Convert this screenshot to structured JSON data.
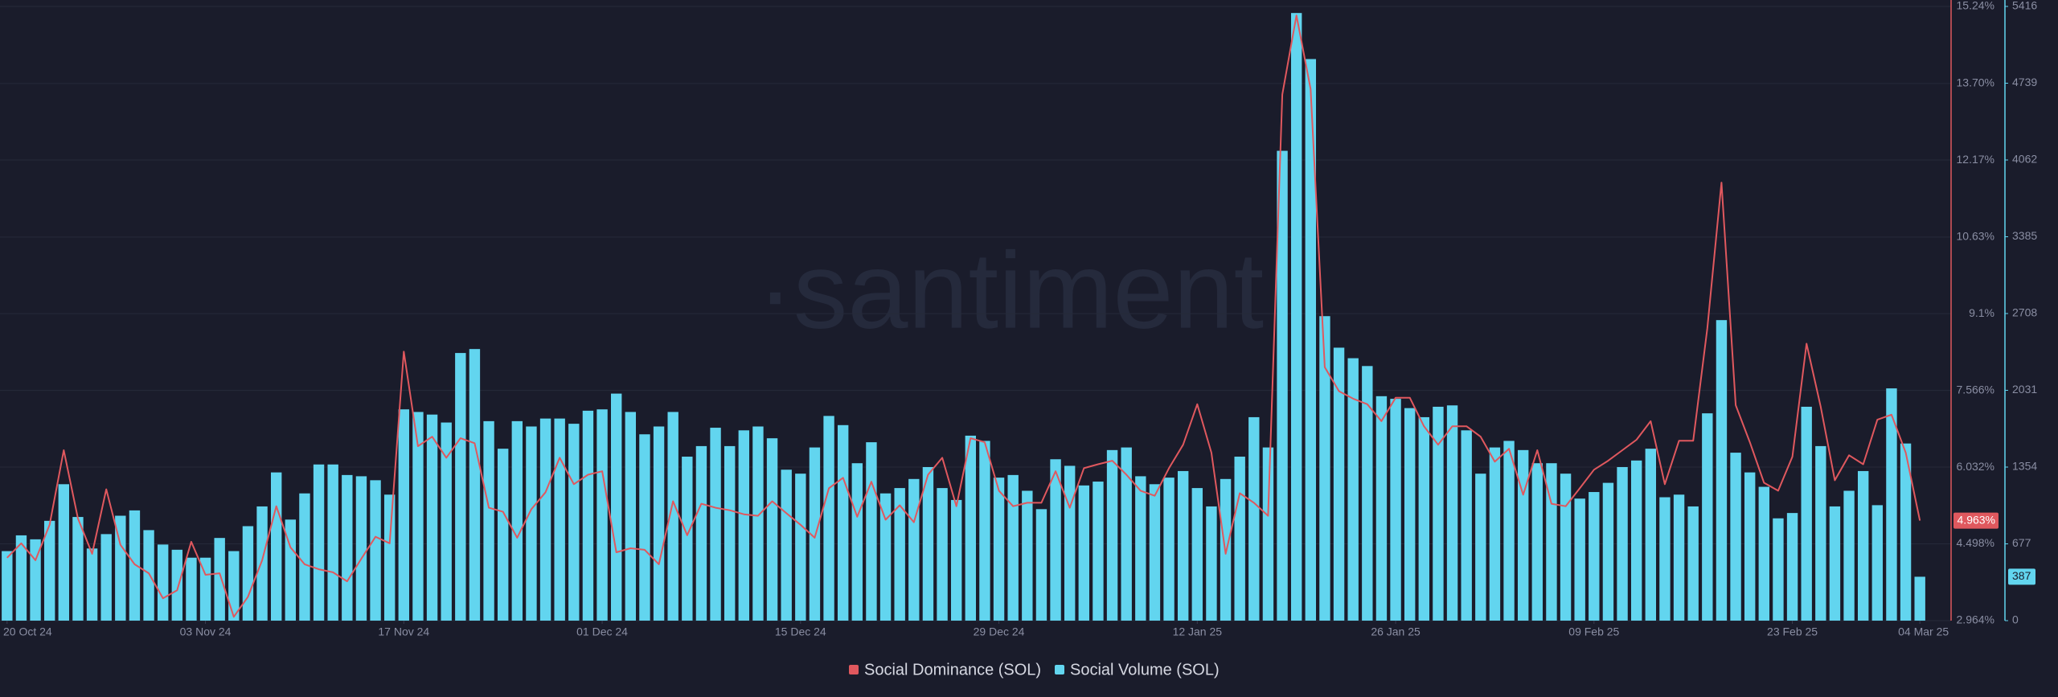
{
  "chart_data": {
    "type": "bar-line",
    "watermark": "·santiment",
    "x": [
      "2024-10-20",
      "2024-10-21",
      "2024-10-22",
      "2024-10-23",
      "2024-10-24",
      "2024-10-25",
      "2024-10-26",
      "2024-10-27",
      "2024-10-28",
      "2024-10-29",
      "2024-10-30",
      "2024-10-31",
      "2024-11-01",
      "2024-11-02",
      "2024-11-03",
      "2024-11-04",
      "2024-11-05",
      "2024-11-06",
      "2024-11-07",
      "2024-11-08",
      "2024-11-09",
      "2024-11-10",
      "2024-11-11",
      "2024-11-12",
      "2024-11-13",
      "2024-11-14",
      "2024-11-15",
      "2024-11-16",
      "2024-11-17",
      "2024-11-18",
      "2024-11-19",
      "2024-11-20",
      "2024-11-21",
      "2024-11-22",
      "2024-11-23",
      "2024-11-24",
      "2024-11-25",
      "2024-11-26",
      "2024-11-27",
      "2024-11-28",
      "2024-11-29",
      "2024-11-30",
      "2024-12-01",
      "2024-12-02",
      "2024-12-03",
      "2024-12-04",
      "2024-12-05",
      "2024-12-06",
      "2024-12-07",
      "2024-12-08",
      "2024-12-09",
      "2024-12-10",
      "2024-12-11",
      "2024-12-12",
      "2024-12-13",
      "2024-12-14",
      "2024-12-15",
      "2024-12-16",
      "2024-12-17",
      "2024-12-18",
      "2024-12-19",
      "2024-12-20",
      "2024-12-21",
      "2024-12-22",
      "2024-12-23",
      "2024-12-24",
      "2024-12-25",
      "2024-12-26",
      "2024-12-27",
      "2024-12-28",
      "2024-12-29",
      "2024-12-30",
      "2024-12-31",
      "2025-01-01",
      "2025-01-02",
      "2025-01-03",
      "2025-01-04",
      "2025-01-05",
      "2025-01-06",
      "2025-01-07",
      "2025-01-08",
      "2025-01-09",
      "2025-01-10",
      "2025-01-11",
      "2025-01-12",
      "2025-01-13",
      "2025-01-14",
      "2025-01-15",
      "2025-01-16",
      "2025-01-17",
      "2025-01-18",
      "2025-01-19",
      "2025-01-20",
      "2025-01-21",
      "2025-01-22",
      "2025-01-23",
      "2025-01-24",
      "2025-01-25",
      "2025-01-26",
      "2025-01-27",
      "2025-01-28",
      "2025-01-29",
      "2025-01-30",
      "2025-01-31",
      "2025-02-01",
      "2025-02-02",
      "2025-02-03",
      "2025-02-04",
      "2025-02-05",
      "2025-02-06",
      "2025-02-07",
      "2025-02-08",
      "2025-02-09",
      "2025-02-10",
      "2025-02-11",
      "2025-02-12",
      "2025-02-13",
      "2025-02-14",
      "2025-02-15",
      "2025-02-16",
      "2025-02-17",
      "2025-02-18",
      "2025-02-19",
      "2025-02-20",
      "2025-02-21",
      "2025-02-22",
      "2025-02-23",
      "2025-02-24",
      "2025-02-25",
      "2025-02-26",
      "2025-02-27",
      "2025-02-28",
      "2025-03-01",
      "2025-03-02",
      "2025-03-03",
      "2025-03-04"
    ],
    "xticks": [
      {
        "value": "2024-10-20",
        "label": "20 Oct 24"
      },
      {
        "value": "2024-11-03",
        "label": "03 Nov 24"
      },
      {
        "value": "2024-11-17",
        "label": "17 Nov 24"
      },
      {
        "value": "2024-12-01",
        "label": "01 Dec 24"
      },
      {
        "value": "2024-12-15",
        "label": "15 Dec 24"
      },
      {
        "value": "2024-12-29",
        "label": "29 Dec 24"
      },
      {
        "value": "2025-01-12",
        "label": "12 Jan 25"
      },
      {
        "value": "2025-01-26",
        "label": "26 Jan 25"
      },
      {
        "value": "2025-02-09",
        "label": "09 Feb 25"
      },
      {
        "value": "2025-02-23",
        "label": "23 Feb 25"
      },
      {
        "value": "2025-03-04",
        "label": "04 Mar 25"
      }
    ],
    "ylim": [
      2.964,
      15.24
    ],
    "yticks": [
      {
        "value": 2.964,
        "label": "2.964%"
      },
      {
        "value": 4.498,
        "label": "4.498%"
      },
      {
        "value": 6.032,
        "label": "6.032%"
      },
      {
        "value": 7.566,
        "label": "7.566%"
      },
      {
        "value": 9.1,
        "label": "9.1%"
      },
      {
        "value": 10.63,
        "label": "10.63%"
      },
      {
        "value": 12.17,
        "label": "12.17%"
      },
      {
        "value": 13.7,
        "label": "13.70%"
      },
      {
        "value": 15.24,
        "label": "15.24%"
      }
    ],
    "y2lim": [
      0,
      5416
    ],
    "y2ticks": [
      0,
      677,
      1354,
      2031,
      2708,
      3385,
      4062,
      4739,
      5416
    ],
    "grid": true,
    "series": [
      {
        "name": "Social Dominance (SOL)",
        "type": "line",
        "color": "#e0585e",
        "last_value_label": "4.963%",
        "values": [
          4.22,
          4.51,
          4.17,
          4.88,
          6.37,
          5.01,
          4.3,
          5.59,
          4.48,
          4.09,
          3.91,
          3.41,
          3.57,
          4.54,
          3.88,
          3.91,
          3.04,
          3.44,
          4.17,
          5.25,
          4.43,
          4.09,
          3.99,
          3.93,
          3.75,
          4.2,
          4.64,
          4.51,
          8.34,
          6.45,
          6.64,
          6.22,
          6.61,
          6.51,
          5.22,
          5.14,
          4.62,
          5.19,
          5.53,
          6.22,
          5.69,
          5.88,
          5.95,
          4.33,
          4.41,
          4.38,
          4.09,
          5.35,
          4.67,
          5.3,
          5.22,
          5.17,
          5.09,
          5.06,
          5.35,
          5.11,
          4.88,
          4.62,
          5.61,
          5.82,
          5.04,
          5.74,
          4.98,
          5.27,
          4.93,
          5.88,
          6.22,
          5.25,
          6.61,
          6.53,
          5.56,
          5.25,
          5.32,
          5.32,
          5.95,
          5.22,
          6.01,
          6.09,
          6.16,
          5.88,
          5.56,
          5.46,
          6.01,
          6.48,
          7.29,
          6.32,
          4.3,
          5.51,
          5.32,
          5.06,
          13.48,
          15.06,
          13.59,
          8.03,
          7.55,
          7.4,
          7.29,
          6.95,
          7.42,
          7.42,
          6.85,
          6.48,
          6.85,
          6.85,
          6.64,
          6.14,
          6.4,
          5.48,
          6.37,
          5.3,
          5.25,
          5.61,
          5.98,
          6.16,
          6.37,
          6.58,
          6.95,
          5.69,
          6.56,
          6.56,
          8.81,
          11.72,
          7.27,
          6.53,
          5.72,
          5.56,
          6.24,
          8.5,
          7.24,
          5.77,
          6.27,
          6.09,
          6.98,
          7.08,
          6.32,
          4.963
        ]
      },
      {
        "name": "Social Volume (SOL)",
        "type": "bar",
        "axis": "y2",
        "color": "#62d5ef",
        "values": [
          613,
          752,
          717,
          880,
          1203,
          914,
          636,
          763,
          925,
          972,
          798,
          671,
          625,
          555,
          555,
          729,
          613,
          833,
          1007,
          1307,
          891,
          1122,
          1377,
          1377,
          1284,
          1273,
          1238,
          1111,
          1863,
          1840,
          1817,
          1747,
          2360,
          2395,
          1759,
          1516,
          1759,
          1712,
          1782,
          1782,
          1736,
          1851,
          1863,
          2002,
          1840,
          1643,
          1712,
          1840,
          1446,
          1539,
          1701,
          1539,
          1678,
          1712,
          1608,
          1331,
          1296,
          1527,
          1805,
          1724,
          1388,
          1573,
          1122,
          1169,
          1249,
          1354,
          1169,
          1064,
          1631,
          1585,
          1261,
          1284,
          1145,
          983,
          1423,
          1365,
          1192,
          1226,
          1504,
          1527,
          1273,
          1203,
          1261,
          1319,
          1169,
          1007,
          1249,
          1446,
          1794,
          1527,
          4143,
          5358,
          4952,
          2685,
          2407,
          2314,
          2245,
          1979,
          1956,
          1874,
          1794,
          1886,
          1898,
          1678,
          1296,
          1527,
          1585,
          1504,
          1388,
          1388,
          1296,
          1076,
          1134,
          1215,
          1354,
          1412,
          1516,
          1088,
          1111,
          1007,
          1828,
          2650,
          1481,
          1307,
          1180,
          902,
          949,
          1886,
          1539,
          1007,
          1145,
          1319,
          1018,
          2048,
          1562,
          387
        ]
      }
    ]
  }
}
